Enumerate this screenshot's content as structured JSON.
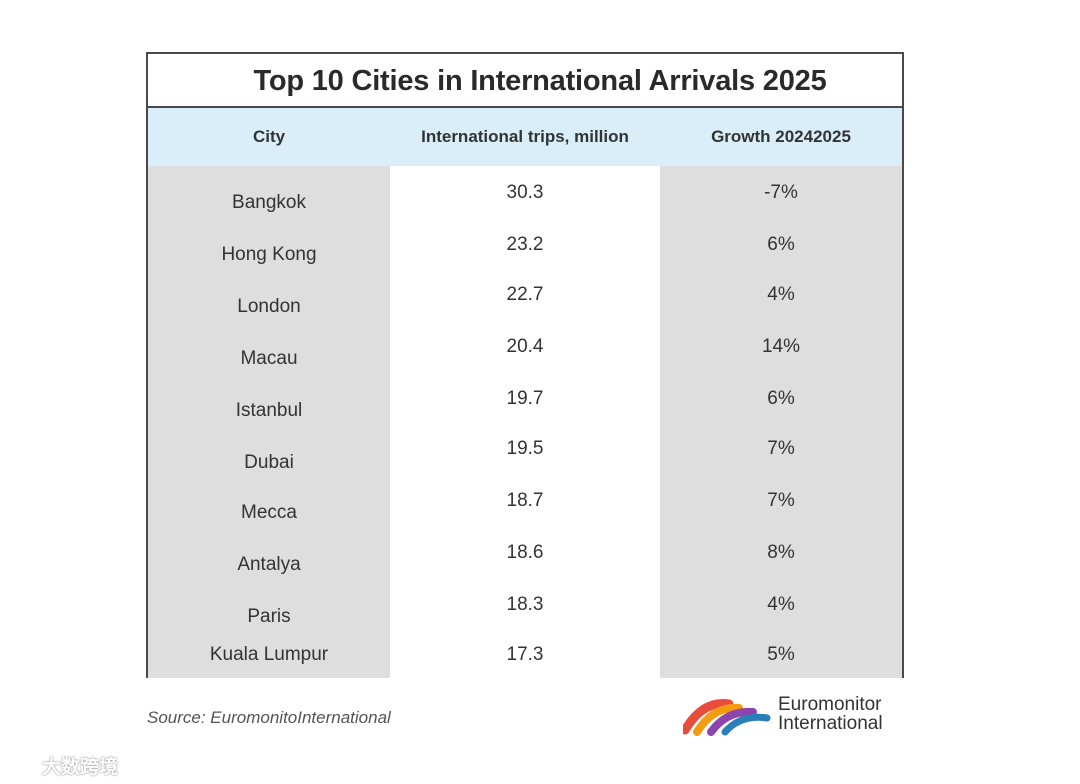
{
  "chart_data": {
    "type": "table",
    "title": "Top 10 Cities in International Arrivals 2025",
    "columns": [
      "City",
      "International trips, million",
      "Growth 20242025"
    ],
    "rows": [
      {
        "city": "Bangkok",
        "trips": "30.3",
        "growth": "-7%"
      },
      {
        "city": "Hong Kong",
        "trips": "23.2",
        "growth": "6%"
      },
      {
        "city": "London",
        "trips": "22.7",
        "growth": "4%"
      },
      {
        "city": "Macau",
        "trips": "20.4",
        "growth": "14%"
      },
      {
        "city": "Istanbul",
        "trips": "19.7",
        "growth": "6%"
      },
      {
        "city": "Dubai",
        "trips": "19.5",
        "growth": "7%"
      },
      {
        "city": "Mecca",
        "trips": "18.7",
        "growth": "7%"
      },
      {
        "city": "Antalya",
        "trips": "18.6",
        "growth": "8%"
      },
      {
        "city": "Paris",
        "trips": "18.3",
        "growth": "4%"
      },
      {
        "city": "Kuala Lumpur",
        "trips": "17.3",
        "growth": "5%"
      }
    ],
    "source": "Source: EuromonitoInternational"
  },
  "logo": {
    "line1": "Euromonitor",
    "line2": "International"
  },
  "watermark": {
    "text": "大数跨境"
  },
  "colors": {
    "header_bg": "#d9eef9",
    "shaded_col": "#dedede",
    "border": "#4a4a4a"
  }
}
